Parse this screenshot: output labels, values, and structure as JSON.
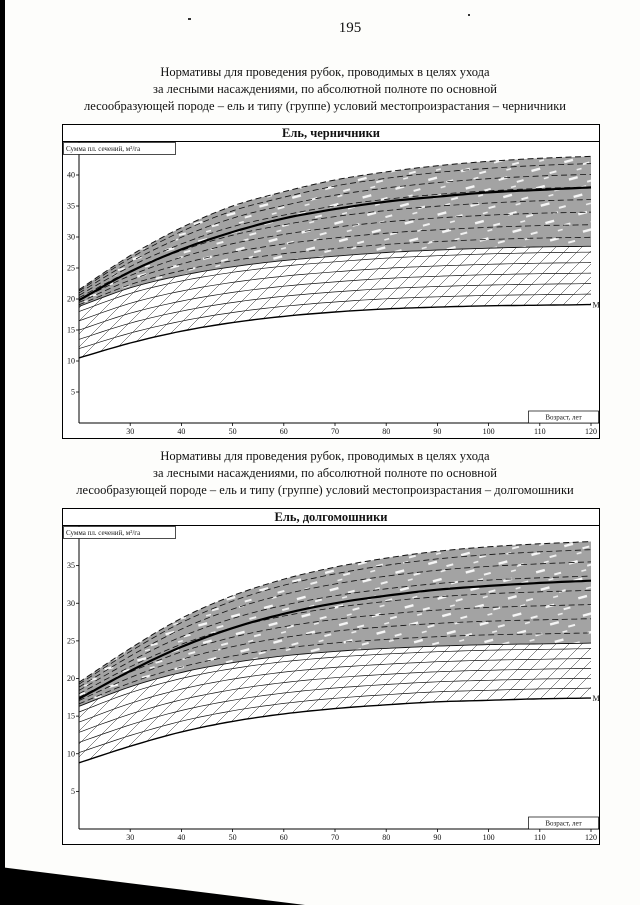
{
  "page": {
    "number": "195"
  },
  "sections": [
    {
      "caption_lines": [
        "Нормативы для проведения рубок, проводимых в целях ухода",
        "за лесными насаждениями, по абсолютной полноте по основной",
        "лесообразующей породе – ель и типу (группе) условий местопроизрастания – черничники"
      ]
    },
    {
      "caption_lines": [
        "Нормативы для проведения рубок, проводимых в целях ухода",
        "за лесными насаждениями, по абсолютной полноте по основной",
        "лесообразующей породе – ель и типу (группе) условий местопроизрастания – долгомошники"
      ]
    }
  ],
  "chart_data": [
    {
      "type": "line",
      "title": "Ель, черничники",
      "ylabel": "Сумма пл. сечений, м²/га",
      "xlabel": "Возраст, лет",
      "x": [
        20,
        30,
        40,
        50,
        60,
        70,
        80,
        90,
        100,
        110,
        120
      ],
      "xticks": [
        30,
        40,
        50,
        60,
        70,
        80,
        90,
        100,
        110,
        120
      ],
      "yticks": [
        5,
        10,
        15,
        20,
        25,
        30,
        35,
        40
      ],
      "xlim": [
        20,
        120
      ],
      "ylim": [
        0,
        45
      ],
      "grid": false,
      "legend_position": "none",
      "band_fill": "#a3a3a3",
      "series": [
        {
          "name": "upper_boundary_before_thinning",
          "style": "dashed",
          "values": [
            21.5,
            27,
            31.5,
            35,
            37.3,
            39.2,
            40.5,
            41.5,
            42.2,
            42.7,
            43
          ]
        },
        {
          "name": "main_growth_curve",
          "style": "bold",
          "values": [
            19.8,
            24.4,
            28,
            30.8,
            33,
            34.5,
            35.7,
            36.5,
            37.2,
            37.6,
            38
          ]
        },
        {
          "name": "lower_boundary_of_band",
          "style": "thin",
          "values": [
            18.8,
            21.8,
            23.8,
            25.2,
            26.2,
            26.9,
            27.5,
            27.9,
            28.2,
            28.4,
            28.5
          ]
        },
        {
          "name": "minimum_basal_area_after_thinning",
          "style": "solid",
          "label": "М",
          "values": [
            10.5,
            12.9,
            14.8,
            16.2,
            17.2,
            17.9,
            18.4,
            18.7,
            18.9,
            19.0,
            19.1
          ]
        }
      ]
    },
    {
      "type": "line",
      "title": "Ель, долгомошники",
      "ylabel": "Сумма пл. сечений, м²/га",
      "xlabel": "Возраст, лет",
      "x": [
        20,
        30,
        40,
        50,
        60,
        70,
        80,
        90,
        100,
        110,
        120
      ],
      "xticks": [
        30,
        40,
        50,
        60,
        70,
        80,
        90,
        100,
        110,
        120
      ],
      "yticks": [
        5,
        10,
        15,
        20,
        25,
        30,
        35
      ],
      "xlim": [
        20,
        120
      ],
      "ylim": [
        0,
        40
      ],
      "grid": false,
      "legend_position": "none",
      "band_fill": "#a3a3a3",
      "series": [
        {
          "name": "upper_boundary_before_thinning",
          "style": "dashed",
          "values": [
            19.5,
            24,
            28,
            31,
            33.2,
            34.8,
            36,
            36.9,
            37.5,
            37.9,
            38.2
          ]
        },
        {
          "name": "main_growth_curve",
          "style": "bold",
          "values": [
            17.3,
            21,
            24.2,
            26.7,
            28.6,
            30,
            31,
            31.8,
            32.3,
            32.7,
            33
          ]
        },
        {
          "name": "lower_boundary_of_band",
          "style": "thin",
          "values": [
            16.3,
            18.9,
            20.8,
            22.1,
            23,
            23.6,
            24,
            24.3,
            24.5,
            24.6,
            24.7
          ]
        },
        {
          "name": "minimum_basal_area_after_thinning",
          "style": "solid",
          "label": "М",
          "values": [
            8.8,
            11,
            12.9,
            14.3,
            15.3,
            16,
            16.5,
            16.9,
            17.1,
            17.3,
            17.4
          ]
        }
      ]
    }
  ]
}
